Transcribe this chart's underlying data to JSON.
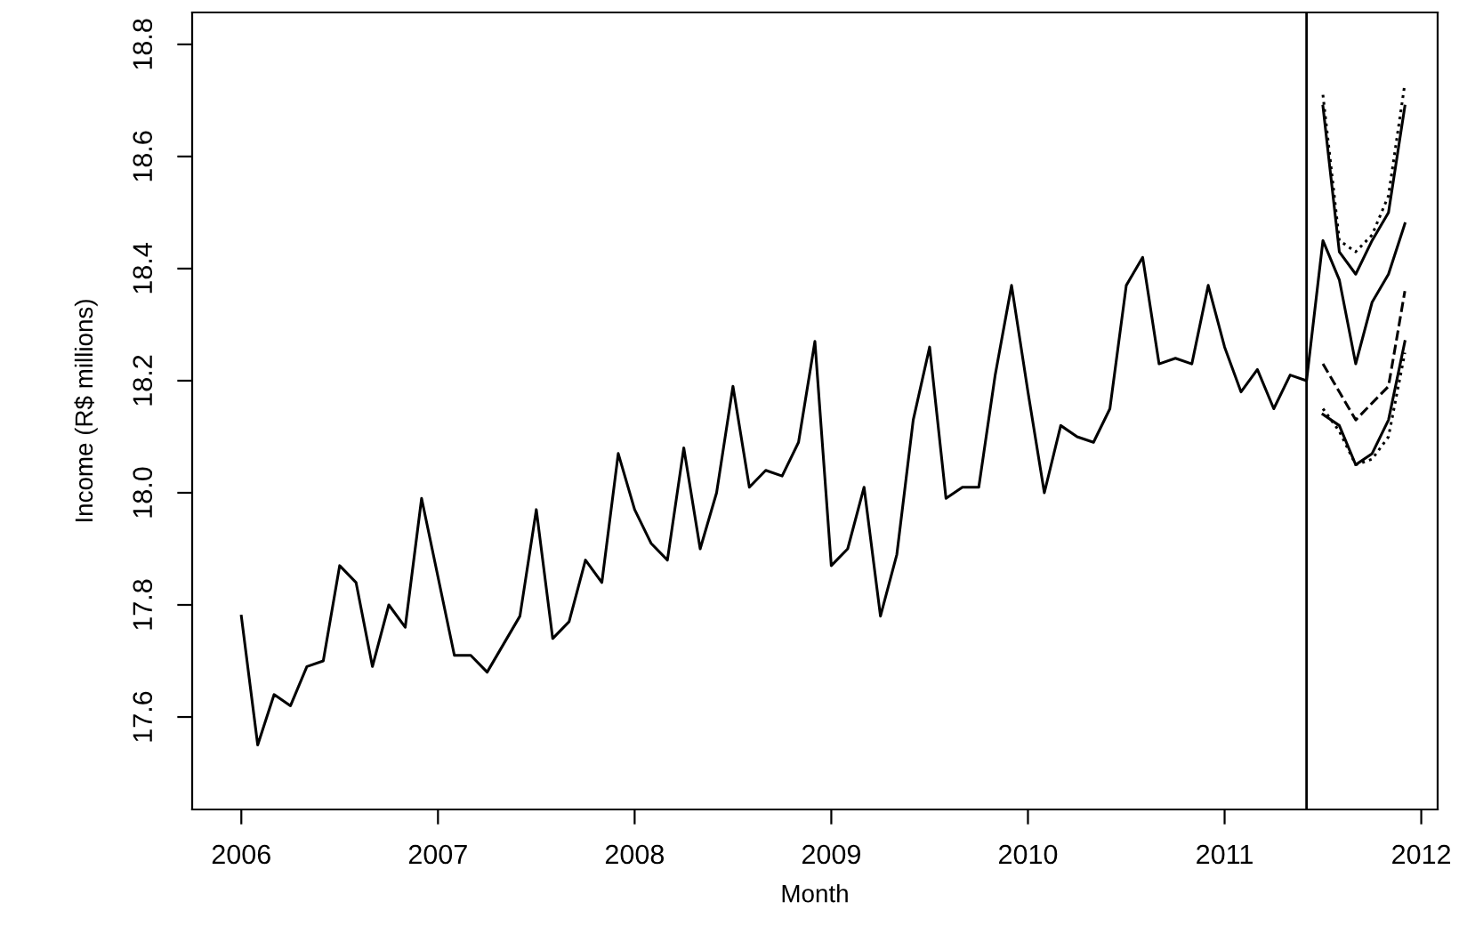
{
  "chart_data": {
    "type": "line",
    "xlabel": "Month",
    "ylabel": "Income (R$ millions)",
    "xlim": [
      "2005-10",
      "2012-02"
    ],
    "xticks": [
      {
        "value": "2006",
        "label": "2006"
      },
      {
        "value": "2007",
        "label": "2007"
      },
      {
        "value": "2008",
        "label": "2008"
      },
      {
        "value": "2009",
        "label": "2009"
      },
      {
        "value": "2010",
        "label": "2010"
      },
      {
        "value": "2011",
        "label": "2011"
      },
      {
        "value": "2012",
        "label": "2012"
      }
    ],
    "ylim": [
      17.435,
      18.857
    ],
    "yticks": [
      {
        "value": 17.6,
        "label": "17.6"
      },
      {
        "value": 17.8,
        "label": "17.8"
      },
      {
        "value": 18.0,
        "label": "18.0"
      },
      {
        "value": 18.2,
        "label": "18.2"
      },
      {
        "value": 18.4,
        "label": "18.4"
      },
      {
        "value": 18.6,
        "label": "18.6"
      },
      {
        "value": 18.8,
        "label": "18.8"
      }
    ],
    "grid": false,
    "marker": "none",
    "ref_lines": [
      {
        "axis": "x",
        "value": "2011-06",
        "color": "#000000",
        "line_style": "solid"
      }
    ],
    "series": [
      {
        "color": "#000000",
        "line_style": "solid",
        "x": [
          "2006-01",
          "2006-02",
          "2006-03",
          "2006-04",
          "2006-05",
          "2006-06",
          "2006-07",
          "2006-08",
          "2006-09",
          "2006-10",
          "2006-11",
          "2006-12",
          "2007-01",
          "2007-02",
          "2007-03",
          "2007-04",
          "2007-05",
          "2007-06",
          "2007-07",
          "2007-08",
          "2007-09",
          "2007-10",
          "2007-11",
          "2007-12",
          "2008-01",
          "2008-02",
          "2008-03",
          "2008-04",
          "2008-05",
          "2008-06",
          "2008-07",
          "2008-08",
          "2008-09",
          "2008-10",
          "2008-11",
          "2008-12",
          "2009-01",
          "2009-02",
          "2009-03",
          "2009-04",
          "2009-05",
          "2009-06",
          "2009-07",
          "2009-08",
          "2009-09",
          "2009-10",
          "2009-11",
          "2009-12",
          "2010-01",
          "2010-02",
          "2010-03",
          "2010-04",
          "2010-05",
          "2010-06",
          "2010-07",
          "2010-08",
          "2010-09",
          "2010-10",
          "2010-11",
          "2010-12",
          "2011-01",
          "2011-02",
          "2011-03",
          "2011-04",
          "2011-05",
          "2011-06",
          "2011-07",
          "2011-08",
          "2011-09",
          "2011-10",
          "2011-11",
          "2011-12"
        ],
        "values": [
          17.78,
          17.55,
          17.64,
          17.62,
          17.69,
          17.7,
          17.87,
          17.84,
          17.69,
          17.8,
          17.76,
          17.99,
          17.85,
          17.71,
          17.71,
          17.68,
          17.73,
          17.78,
          17.97,
          17.74,
          17.77,
          17.88,
          17.84,
          18.07,
          17.97,
          17.91,
          17.88,
          18.08,
          17.9,
          18.0,
          18.19,
          18.01,
          18.04,
          18.03,
          18.09,
          18.27,
          17.87,
          17.9,
          18.01,
          17.78,
          17.89,
          18.13,
          18.26,
          17.99,
          18.01,
          18.01,
          18.21,
          18.37,
          18.18,
          18.0,
          18.12,
          18.1,
          18.09,
          18.15,
          18.37,
          18.42,
          18.23,
          18.24,
          18.23,
          18.37,
          18.26,
          18.18,
          18.22,
          18.15,
          18.21,
          18.2,
          18.45,
          18.38,
          18.23,
          18.34,
          18.39,
          18.48
        ]
      },
      {
        "color": "#000000",
        "line_style": "solid",
        "x": [
          "2011-07",
          "2011-08",
          "2011-09",
          "2011-10",
          "2011-11",
          "2011-12"
        ],
        "values": [
          18.69,
          18.43,
          18.39,
          18.45,
          18.5,
          18.69
        ]
      },
      {
        "color": "#000000",
        "line_style": "dotted",
        "x": [
          "2011-07",
          "2011-08",
          "2011-09",
          "2011-10",
          "2011-11",
          "2011-12"
        ],
        "values": [
          18.71,
          18.45,
          18.43,
          18.46,
          18.53,
          18.73
        ]
      },
      {
        "color": "#000000",
        "line_style": "dashed",
        "x": [
          "2011-07",
          "2011-08",
          "2011-09",
          "2011-10",
          "2011-11",
          "2011-12"
        ],
        "values": [
          18.23,
          18.18,
          18.13,
          18.16,
          18.19,
          18.36
        ]
      },
      {
        "color": "#000000",
        "line_style": "solid",
        "x": [
          "2011-07",
          "2011-08",
          "2011-09",
          "2011-10",
          "2011-11",
          "2011-12"
        ],
        "values": [
          18.14,
          18.12,
          18.05,
          18.07,
          18.13,
          18.27
        ]
      },
      {
        "color": "#000000",
        "line_style": "dotted",
        "x": [
          "2011-07",
          "2011-08",
          "2011-09",
          "2011-10",
          "2011-11",
          "2011-12"
        ],
        "values": [
          18.15,
          18.11,
          18.05,
          18.06,
          18.1,
          18.25
        ]
      }
    ]
  }
}
